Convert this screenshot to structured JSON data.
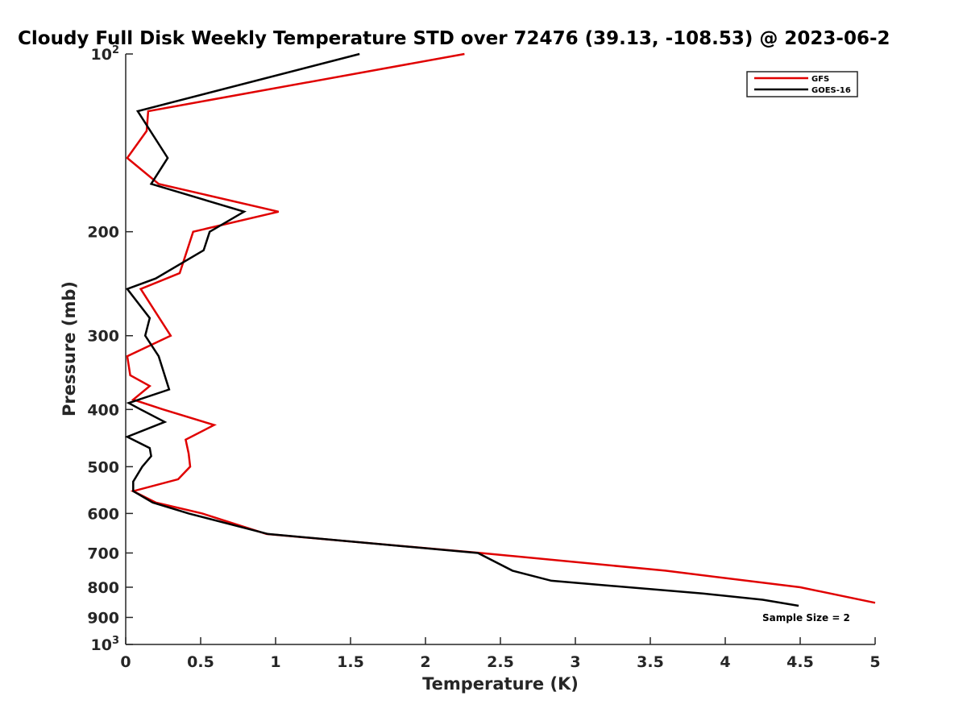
{
  "chart_data": {
    "type": "line",
    "title": "Cloudy Full Disk Weekly Temperature STD over 72476 (39.13, -108.53) @ 2023-06-2",
    "xlabel": "Temperature (K)",
    "ylabel": "Pressure (mb)",
    "xlim": [
      0,
      5
    ],
    "ylim": [
      100,
      1000
    ],
    "y_scale": "log",
    "y_reversed": true,
    "grid": false,
    "legend_position": "top-right",
    "annotation": "Sample Size = 2",
    "xticks": [
      {
        "value": 0,
        "label": "0"
      },
      {
        "value": 0.5,
        "label": "0.5"
      },
      {
        "value": 1,
        "label": "1"
      },
      {
        "value": 1.5,
        "label": "1.5"
      },
      {
        "value": 2,
        "label": "2"
      },
      {
        "value": 2.5,
        "label": "2.5"
      },
      {
        "value": 3,
        "label": "3"
      },
      {
        "value": 3.5,
        "label": "3.5"
      },
      {
        "value": 4,
        "label": "4"
      },
      {
        "value": 4.5,
        "label": "4.5"
      },
      {
        "value": 5,
        "label": "5"
      }
    ],
    "yticks": [
      {
        "value": 100,
        "base": "10",
        "exp": "2"
      },
      {
        "value": 200,
        "base": "200",
        "exp": ""
      },
      {
        "value": 300,
        "base": "300",
        "exp": ""
      },
      {
        "value": 400,
        "base": "400",
        "exp": ""
      },
      {
        "value": 500,
        "base": "500",
        "exp": ""
      },
      {
        "value": 600,
        "base": "600",
        "exp": ""
      },
      {
        "value": 700,
        "base": "700",
        "exp": ""
      },
      {
        "value": 800,
        "base": "800",
        "exp": ""
      },
      {
        "value": 900,
        "base": "900",
        "exp": ""
      },
      {
        "value": 1000,
        "base": "10",
        "exp": "3"
      }
    ],
    "series": [
      {
        "name": "GFS",
        "color": "#e00000",
        "points": [
          [
            2.26,
            100
          ],
          [
            0.15,
            125
          ],
          [
            0.14,
            135
          ],
          [
            0.01,
            150
          ],
          [
            0.22,
            166
          ],
          [
            1.02,
            185
          ],
          [
            0.45,
            200
          ],
          [
            0.36,
            235
          ],
          [
            0.1,
            250
          ],
          [
            0.3,
            300
          ],
          [
            0.01,
            325
          ],
          [
            0.03,
            350
          ],
          [
            0.16,
            365
          ],
          [
            0.05,
            385
          ],
          [
            0.25,
            400
          ],
          [
            0.59,
            425
          ],
          [
            0.4,
            450
          ],
          [
            0.42,
            475
          ],
          [
            0.43,
            500
          ],
          [
            0.35,
            525
          ],
          [
            0.05,
            550
          ],
          [
            0.2,
            575
          ],
          [
            0.51,
            600
          ],
          [
            0.94,
            650
          ],
          [
            2.37,
            700
          ],
          [
            3.6,
            750
          ],
          [
            4.5,
            800
          ],
          [
            5.0,
            850
          ]
        ]
      },
      {
        "name": "GOES-16",
        "color": "#000000",
        "points": [
          [
            1.56,
            100
          ],
          [
            0.08,
            125
          ],
          [
            0.28,
            150
          ],
          [
            0.17,
            166
          ],
          [
            0.79,
            185
          ],
          [
            0.56,
            200
          ],
          [
            0.52,
            215
          ],
          [
            0.2,
            240
          ],
          [
            0.01,
            250
          ],
          [
            0.16,
            280
          ],
          [
            0.13,
            300
          ],
          [
            0.22,
            325
          ],
          [
            0.29,
            370
          ],
          [
            0.02,
            390
          ],
          [
            0.1,
            400
          ],
          [
            0.26,
            420
          ],
          [
            0.01,
            445
          ],
          [
            0.16,
            465
          ],
          [
            0.17,
            480
          ],
          [
            0.11,
            500
          ],
          [
            0.05,
            530
          ],
          [
            0.05,
            550
          ],
          [
            0.18,
            575
          ],
          [
            0.42,
            600
          ],
          [
            0.95,
            650
          ],
          [
            2.35,
            700
          ],
          [
            2.58,
            750
          ],
          [
            2.84,
            780
          ],
          [
            3.85,
            820
          ],
          [
            4.25,
            840
          ],
          [
            4.49,
            860
          ]
        ]
      }
    ]
  }
}
